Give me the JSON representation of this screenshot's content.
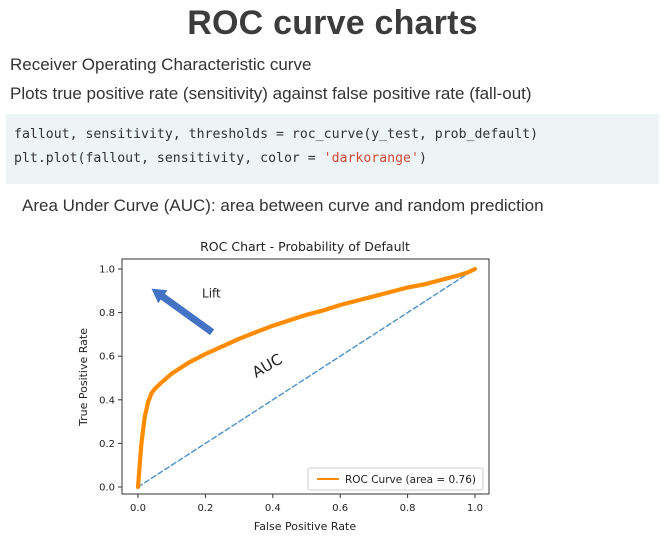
{
  "slide": {
    "title": "ROC curve charts",
    "line1": "Receiver Operating Characteristic curve",
    "line2": "Plots true positive rate (sensitivity) against false positive rate (fall-out)",
    "code": {
      "line1": "fallout, sensitivity, thresholds = roc_curve(y_test, prob_default)",
      "line2_prefix": "plt.plot(fallout, sensitivity, color = ",
      "line2_string": "'darkorange'",
      "line2_suffix": ")"
    },
    "line3": "Area Under Curve (AUC): area between curve and random prediction"
  },
  "chart_data": {
    "type": "line",
    "title": "ROC Chart - Probability of Default",
    "xlabel": "False Positive Rate",
    "ylabel": "True Positive Rate",
    "xlim": [
      0,
      1
    ],
    "ylim": [
      0,
      1
    ],
    "xticks": [
      0.0,
      0.2,
      0.4,
      0.6,
      0.8,
      1.0
    ],
    "xtick_labels": [
      "0.0",
      "0.2",
      "0.4",
      "0.6",
      "0.8",
      "1.0"
    ],
    "yticks": [
      0.0,
      0.2,
      0.4,
      0.6,
      0.8,
      1.0
    ],
    "ytick_labels": [
      "0.0",
      "0.2",
      "0.4",
      "0.6",
      "0.8",
      "1.0"
    ],
    "legend_placement": "lower-right",
    "grid": false,
    "series": [
      {
        "name": "ROC Curve (area = 0.76)",
        "color": "#ff8c00",
        "style": "solid",
        "x": [
          0.0,
          0.005,
          0.01,
          0.02,
          0.03,
          0.04,
          0.05,
          0.07,
          0.1,
          0.15,
          0.2,
          0.25,
          0.3,
          0.35,
          0.4,
          0.45,
          0.5,
          0.55,
          0.6,
          0.65,
          0.7,
          0.75,
          0.8,
          0.85,
          0.9,
          0.95,
          0.98,
          1.0
        ],
        "y": [
          0.0,
          0.1,
          0.2,
          0.32,
          0.39,
          0.43,
          0.45,
          0.48,
          0.52,
          0.57,
          0.61,
          0.645,
          0.68,
          0.71,
          0.74,
          0.765,
          0.79,
          0.81,
          0.835,
          0.855,
          0.875,
          0.895,
          0.915,
          0.93,
          0.95,
          0.97,
          0.985,
          1.0
        ]
      },
      {
        "name": "",
        "color": "#4a90c8",
        "style": "dashed",
        "x": [
          0.0,
          1.0
        ],
        "y": [
          0.0,
          1.0
        ]
      }
    ],
    "annotations": [
      {
        "text": "Lift",
        "x": 0.19,
        "y": 0.87
      },
      {
        "text": "AUC",
        "x": 0.35,
        "y": 0.5,
        "rotate": -30
      }
    ],
    "arrow": {
      "from": [
        0.22,
        0.71
      ],
      "to": [
        0.04,
        0.91
      ],
      "color": "#4472c4"
    }
  }
}
